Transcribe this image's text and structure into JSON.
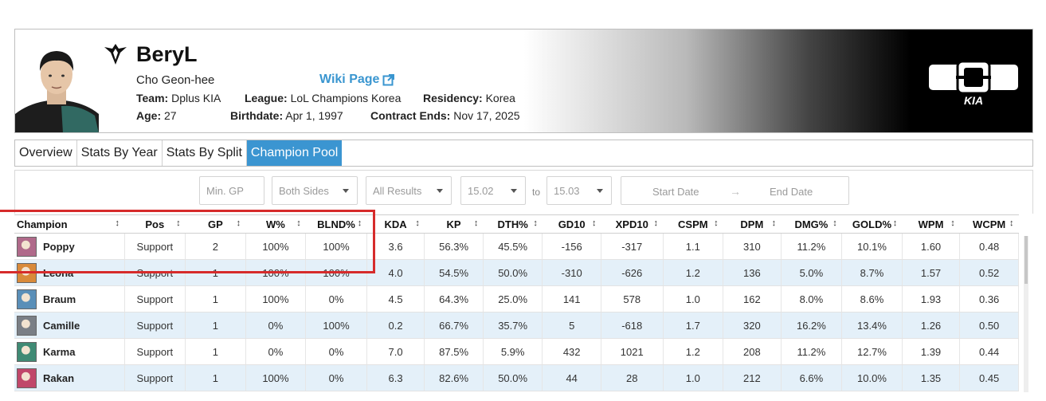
{
  "player": {
    "name": "BeryL",
    "real_name": "Cho Geon-hee",
    "wiki_label": "Wiki Page",
    "team_label": "Team:",
    "team": "Dplus KIA",
    "league_label": "League:",
    "league": "LoL Champions Korea",
    "residency_label": "Residency:",
    "residency": "Korea",
    "age_label": "Age:",
    "age": "27",
    "birthdate_label": "Birthdate:",
    "birthdate": "Apr 1, 1997",
    "contract_label": "Contract Ends:",
    "contract": "Nov 17, 2025",
    "logo_text": "KIA"
  },
  "tabs": [
    {
      "label": "Overview",
      "active": false
    },
    {
      "label": "Stats By Year",
      "active": false
    },
    {
      "label": "Stats By Split",
      "active": false
    },
    {
      "label": "Champion Pool",
      "active": true
    }
  ],
  "filters": {
    "min_gp_placeholder": "Min. GP",
    "sides": "Both Sides",
    "results": "All Results",
    "patch_from": "15.02",
    "to_label": "to",
    "patch_to": "15.03",
    "start_date": "Start Date",
    "arrow": "→",
    "end_date": "End Date"
  },
  "table": {
    "columns": [
      "Champion",
      "Pos",
      "GP",
      "W%",
      "BLND%",
      "KDA",
      "KP",
      "DTH%",
      "GD10",
      "XPD10",
      "CSPM",
      "DPM",
      "DMG%",
      "GOLD%",
      "WPM",
      "WCPM"
    ],
    "sort_icon": "↕",
    "rows": [
      {
        "champion": "Poppy",
        "pos": "Support",
        "gp": "2",
        "w": "100%",
        "blnd": "100%",
        "kda": "3.6",
        "kp": "56.3%",
        "dth": "45.5%",
        "gd10": "-156",
        "xpd10": "-317",
        "cspm": "1.1",
        "dpm": "310",
        "dmg": "11.2%",
        "gold": "10.1%",
        "wpm": "1.60",
        "wcpm": "0.48"
      },
      {
        "champion": "Leona",
        "pos": "Support",
        "gp": "1",
        "w": "100%",
        "blnd": "100%",
        "kda": "4.0",
        "kp": "54.5%",
        "dth": "50.0%",
        "gd10": "-310",
        "xpd10": "-626",
        "cspm": "1.2",
        "dpm": "136",
        "dmg": "5.0%",
        "gold": "8.7%",
        "wpm": "1.57",
        "wcpm": "0.52"
      },
      {
        "champion": "Braum",
        "pos": "Support",
        "gp": "1",
        "w": "100%",
        "blnd": "0%",
        "kda": "4.5",
        "kp": "64.3%",
        "dth": "25.0%",
        "gd10": "141",
        "xpd10": "578",
        "cspm": "1.0",
        "dpm": "162",
        "dmg": "8.0%",
        "gold": "8.6%",
        "wpm": "1.93",
        "wcpm": "0.36"
      },
      {
        "champion": "Camille",
        "pos": "Support",
        "gp": "1",
        "w": "0%",
        "blnd": "100%",
        "kda": "0.2",
        "kp": "66.7%",
        "dth": "35.7%",
        "gd10": "5",
        "xpd10": "-618",
        "cspm": "1.7",
        "dpm": "320",
        "dmg": "16.2%",
        "gold": "13.4%",
        "wpm": "1.26",
        "wcpm": "0.50"
      },
      {
        "champion": "Karma",
        "pos": "Support",
        "gp": "1",
        "w": "0%",
        "blnd": "0%",
        "kda": "7.0",
        "kp": "87.5%",
        "dth": "5.9%",
        "gd10": "432",
        "xpd10": "1021",
        "cspm": "1.2",
        "dpm": "208",
        "dmg": "11.2%",
        "gold": "12.7%",
        "wpm": "1.39",
        "wcpm": "0.44"
      },
      {
        "champion": "Rakan",
        "pos": "Support",
        "gp": "1",
        "w": "100%",
        "blnd": "0%",
        "kda": "6.3",
        "kp": "82.6%",
        "dth": "50.0%",
        "gd10": "44",
        "xpd10": "28",
        "cspm": "1.0",
        "dpm": "212",
        "dmg": "6.6%",
        "gold": "10.0%",
        "wpm": "1.35",
        "wcpm": "0.45"
      }
    ]
  },
  "icons": {
    "champions": {
      "Poppy": "#b06a8a",
      "Leona": "#d98a3a",
      "Braum": "#5a8fb8",
      "Camille": "#7a7f86",
      "Karma": "#3f8a74",
      "Rakan": "#c0476a"
    },
    "accent": "#3b95d1",
    "highlight": "#d62b2b"
  }
}
